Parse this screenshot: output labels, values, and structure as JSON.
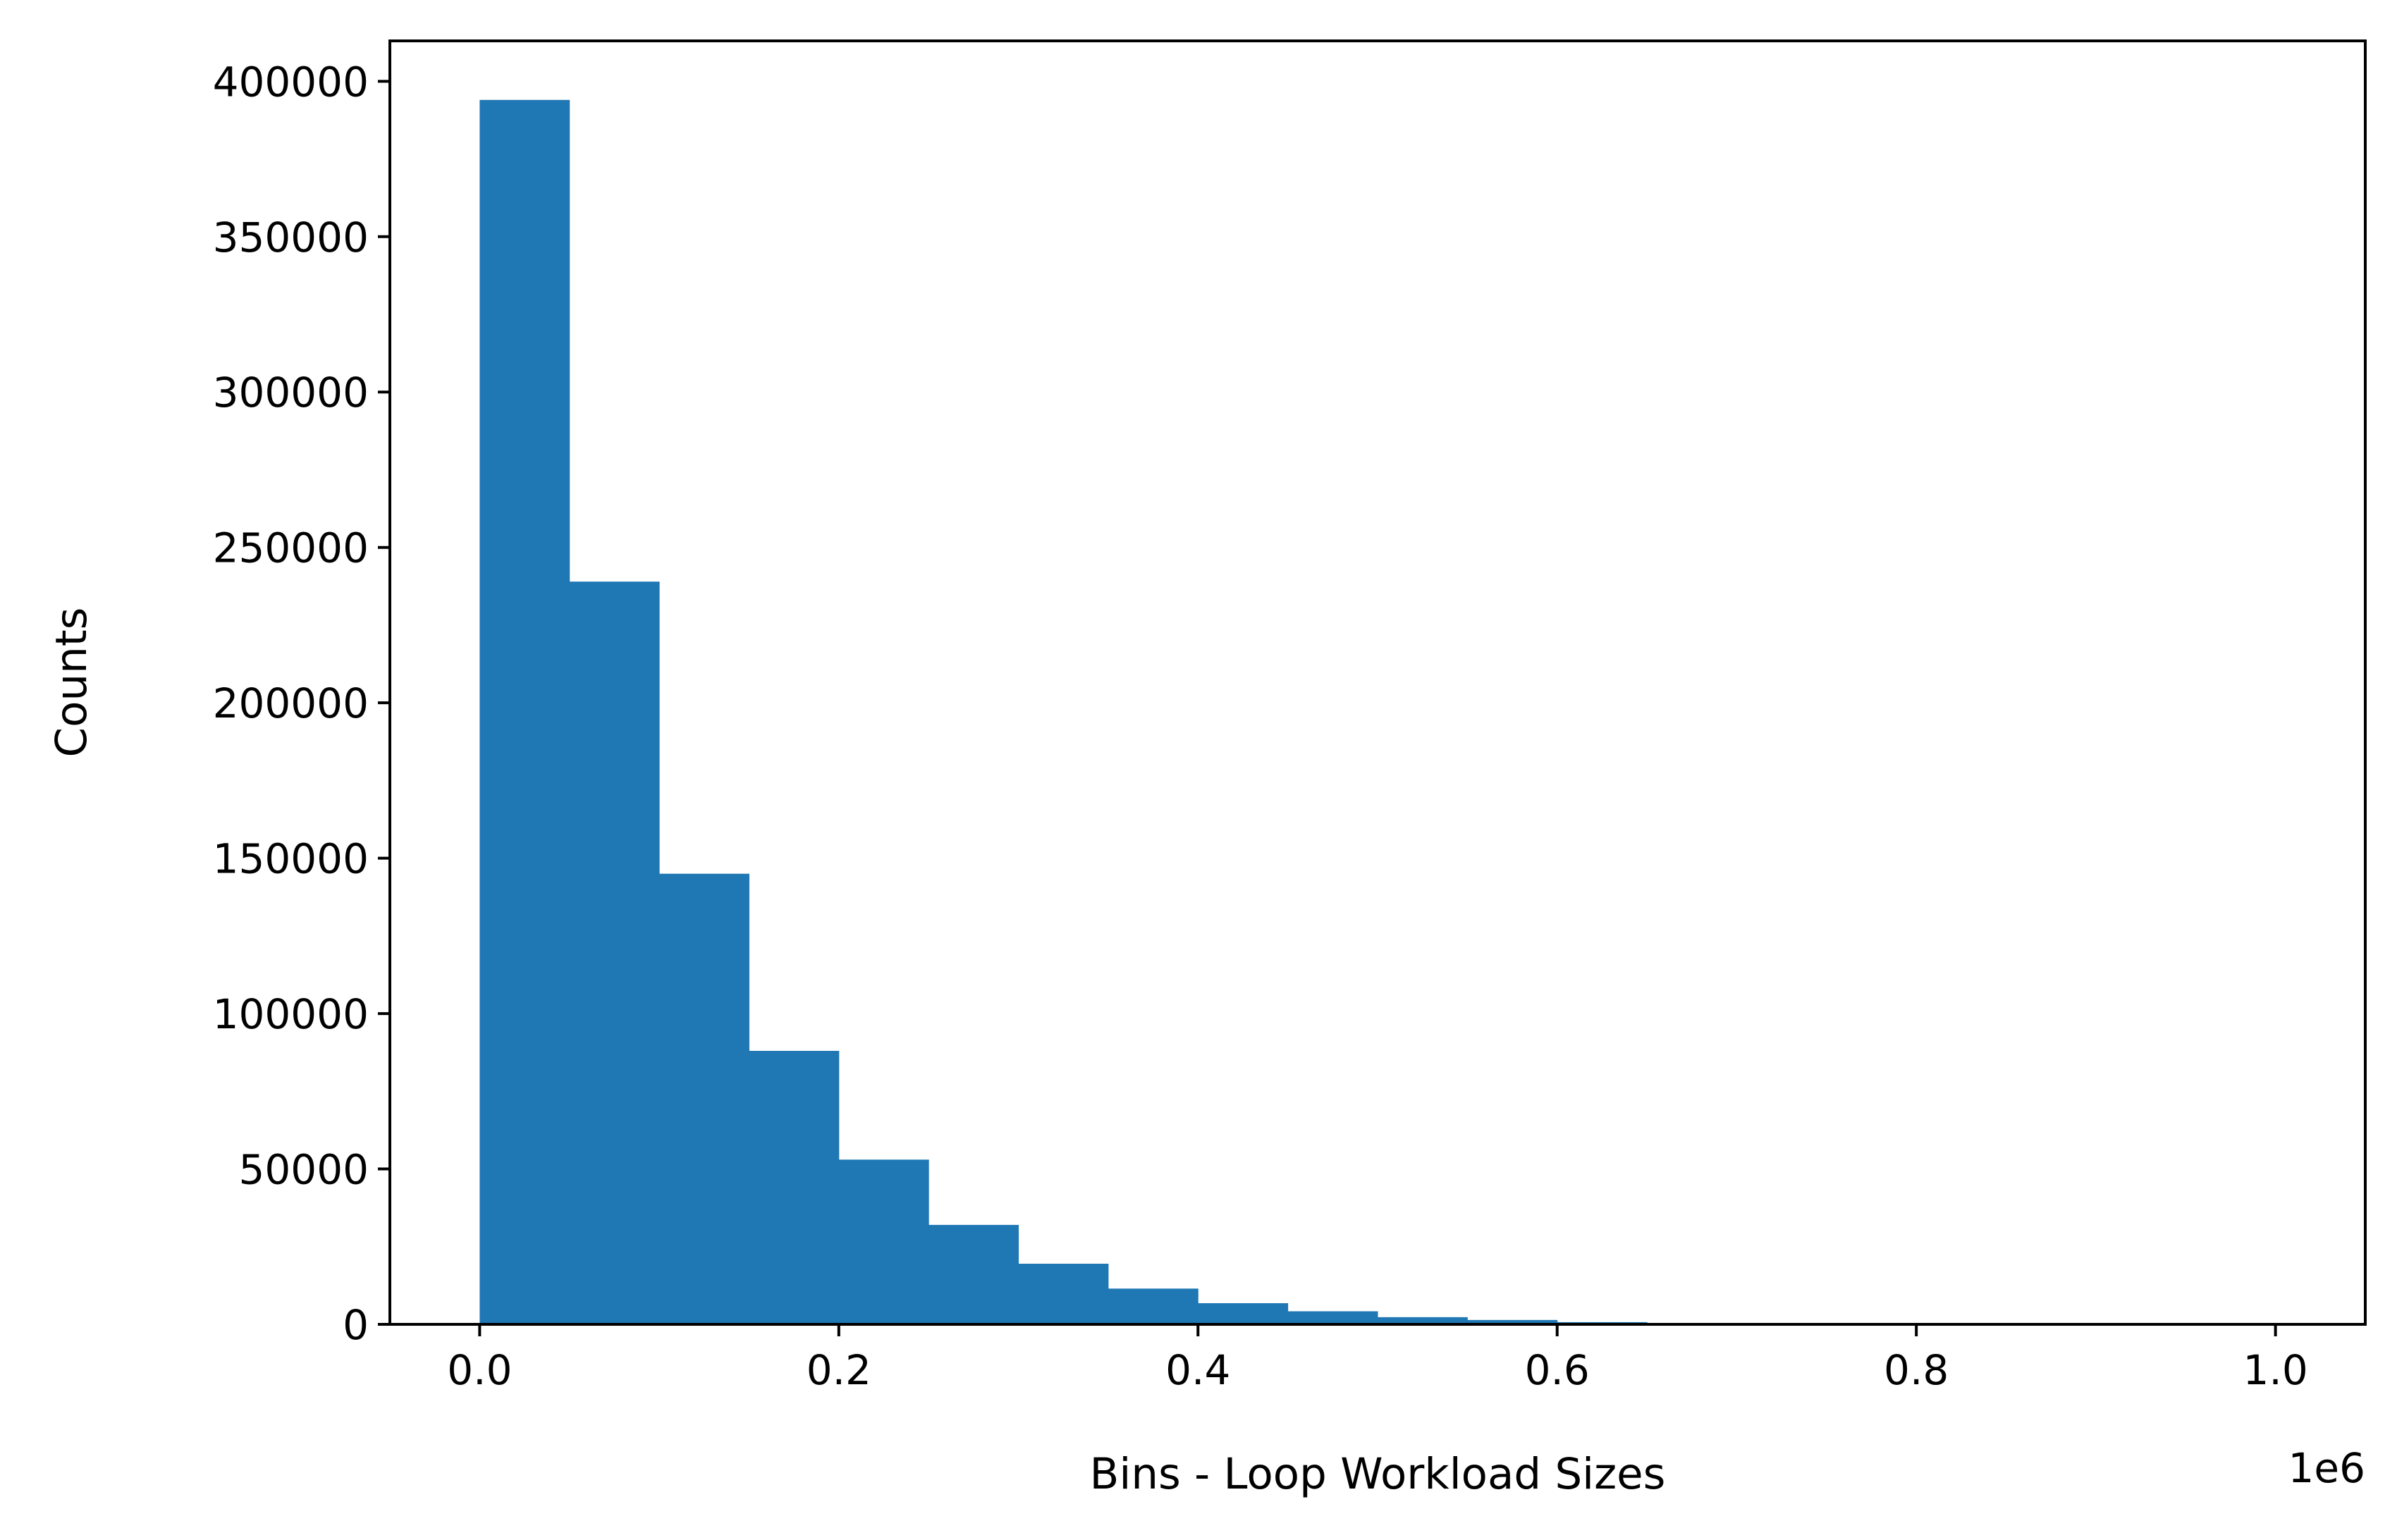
{
  "chart_data": {
    "type": "bar",
    "subtype": "histogram",
    "title": "",
    "xlabel": "Bins - Loop Workload Sizes",
    "ylabel": "Counts",
    "x_offset_label": "1e6",
    "x_scale": 1000000,
    "bin_edges": [
      0,
      50000,
      100000,
      150000,
      200000,
      250000,
      300000,
      350000,
      400000,
      450000,
      500000,
      550000,
      600000,
      650000,
      700000,
      750000,
      800000,
      850000,
      900000,
      950000,
      1000000
    ],
    "values": [
      394000,
      239000,
      145000,
      88000,
      53000,
      32000,
      19500,
      11500,
      6800,
      4200,
      2300,
      1400,
      700,
      350,
      180,
      90,
      45,
      20,
      10,
      5
    ],
    "xlim": [
      -50000,
      1050000
    ],
    "ylim": [
      0,
      413000
    ],
    "x_ticks": [
      0,
      200000,
      400000,
      600000,
      800000,
      1000000
    ],
    "x_tick_labels": [
      "0.0",
      "0.2",
      "0.4",
      "0.6",
      "0.8",
      "1.0"
    ],
    "y_ticks": [
      0,
      50000,
      100000,
      150000,
      200000,
      250000,
      300000,
      350000,
      400000
    ],
    "y_tick_labels": [
      "0",
      "50000",
      "100000",
      "150000",
      "200000",
      "250000",
      "300000",
      "350000",
      "400000"
    ],
    "grid": false,
    "legend": "none",
    "bar_color": "#1f77b4"
  }
}
